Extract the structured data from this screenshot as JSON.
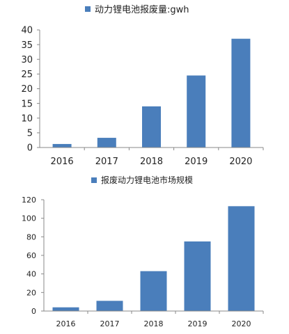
{
  "chart_data": [
    {
      "type": "bar",
      "title": "",
      "xlabel": "",
      "ylabel": "",
      "categories": [
        "2016",
        "2017",
        "2018",
        "2019",
        "2020"
      ],
      "series": [
        {
          "name": "动力锂电池报废量:gwh",
          "values": [
            1.2,
            3.3,
            14.0,
            24.5,
            37.0
          ]
        }
      ],
      "ylim": [
        0,
        40
      ],
      "yticks": [
        "0",
        "5",
        "10",
        "15",
        "20",
        "25",
        "30",
        "35",
        "40"
      ],
      "grid": false,
      "legend": "top-center",
      "colors": {
        "bar": "#4a7ebb",
        "axis": "#888888"
      }
    },
    {
      "type": "bar",
      "title": "",
      "xlabel": "",
      "ylabel": "",
      "categories": [
        "2016",
        "2017",
        "2018",
        "2019",
        "2020"
      ],
      "series": [
        {
          "name": "报废动力锂电池市场规模",
          "values": [
            4,
            11,
            43,
            75,
            113
          ]
        }
      ],
      "ylim": [
        0,
        120
      ],
      "yticks": [
        "0",
        "20",
        "40",
        "60",
        "80",
        "100",
        "120"
      ],
      "grid": false,
      "legend": "top-center",
      "colors": {
        "bar": "#4a7ebb",
        "axis": "#888888"
      }
    }
  ]
}
